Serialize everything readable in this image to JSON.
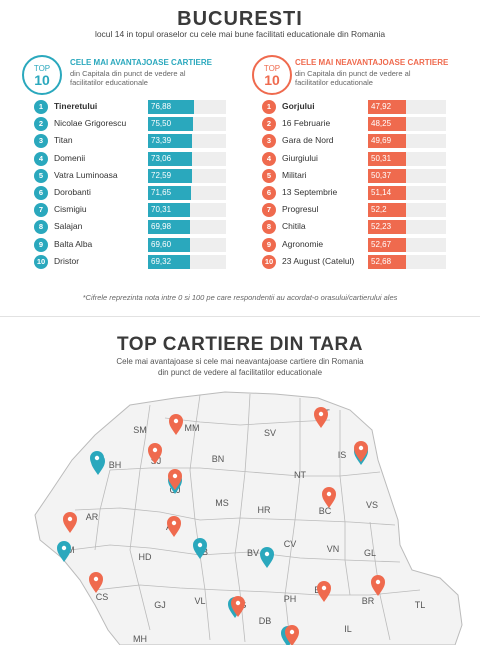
{
  "header": {
    "title": "BUCURESTI",
    "subtitle": "locul 14 in topul oraselor cu cele mai bune facilitati educationale din Romania"
  },
  "best": {
    "badge_top": "TOP",
    "badge_num": "10",
    "title": "CELE MAI AVANTAJOASE CARTIERE",
    "desc": "din Capitala din punct de vedere al facilitatilor educationale",
    "items": [
      {
        "rank": "1",
        "name": "Tineretului",
        "value": "76,88"
      },
      {
        "rank": "2",
        "name": "Nicolae Grigorescu",
        "value": "75,50"
      },
      {
        "rank": "3",
        "name": "Titan",
        "value": "73,39"
      },
      {
        "rank": "4",
        "name": "Domenii",
        "value": "73,06"
      },
      {
        "rank": "5",
        "name": "Vatra Luminoasa",
        "value": "72,59"
      },
      {
        "rank": "6",
        "name": "Dorobanti",
        "value": "71,65"
      },
      {
        "rank": "7",
        "name": "Cismigiu",
        "value": "70,31"
      },
      {
        "rank": "8",
        "name": "Salajan",
        "value": "69,98"
      },
      {
        "rank": "9",
        "name": "Balta Alba",
        "value": "69,60"
      },
      {
        "rank": "10",
        "name": "Dristor",
        "value": "69,32"
      }
    ]
  },
  "worst": {
    "badge_top": "TOP",
    "badge_num": "10",
    "title": "CELE MAI NEAVANTAJOASE CARTIERE",
    "desc": "din Capitala din punct de vedere al facilitatilor educationale",
    "items": [
      {
        "rank": "1",
        "name": "Gorjului",
        "value": "47,92"
      },
      {
        "rank": "2",
        "name": "16 Februarie",
        "value": "48,25"
      },
      {
        "rank": "3",
        "name": "Gara de Nord",
        "value": "49,69"
      },
      {
        "rank": "4",
        "name": "Giurgiului",
        "value": "50,31"
      },
      {
        "rank": "5",
        "name": "Militari",
        "value": "50,37"
      },
      {
        "rank": "6",
        "name": "13 Septembrie",
        "value": "51,14"
      },
      {
        "rank": "7",
        "name": "Progresul",
        "value": "52,2"
      },
      {
        "rank": "8",
        "name": "Chitila",
        "value": "52,23"
      },
      {
        "rank": "9",
        "name": "Agronomie",
        "value": "52,67"
      },
      {
        "rank": "10",
        "name": "23 August (Catelul)",
        "value": "52,68"
      }
    ]
  },
  "footnote": "*Cifrele reprezinta nota intre 0 si 100 pe care respondentii au acordat-o orasului/cartierului ales",
  "section2": {
    "title": "TOP CARTIERE DIN TARA",
    "subtitle_1": "Cele mai avantajoase si cele mai neavantajoase cartiere din Romania",
    "subtitle_2": "din punct de vedere al facilitatilor educationale"
  },
  "colors": {
    "teal": "#2aa8bd",
    "red": "#ef6a4e",
    "county_fill": "#f3f3f3",
    "county_border": "#bbbbbb"
  },
  "map": {
    "counties": [
      "SM",
      "MM",
      "SV",
      "BT",
      "BN",
      "IS",
      "BH",
      "SJ",
      "NT",
      "CJ",
      "MS",
      "AR",
      "BC",
      "VS",
      "HR",
      "AB",
      "TM",
      "CV",
      "VN",
      "HD",
      "SB",
      "BV",
      "GL",
      "CS",
      "GJ",
      "VL",
      "BZ",
      "BR",
      "TL",
      "PH",
      "AG",
      "DB",
      "IL",
      "MH"
    ],
    "pins": [
      {
        "county": "BT",
        "color": "red"
      },
      {
        "county": "MM",
        "color": "red"
      },
      {
        "county": "SJ",
        "color": "red"
      },
      {
        "county": "BH",
        "color": "teal"
      },
      {
        "county": "BH",
        "color": "teal"
      },
      {
        "county": "CJ",
        "color": "teal"
      },
      {
        "county": "CJ",
        "color": "red"
      },
      {
        "county": "IS",
        "color": "teal"
      },
      {
        "county": "IS",
        "color": "red"
      },
      {
        "county": "BC",
        "color": "red"
      },
      {
        "county": "AR",
        "color": "red"
      },
      {
        "county": "AB",
        "color": "red"
      },
      {
        "county": "TM",
        "color": "teal"
      },
      {
        "county": "SB",
        "color": "teal"
      },
      {
        "county": "BV",
        "color": "teal"
      },
      {
        "county": "CS",
        "color": "red"
      },
      {
        "county": "BZ",
        "color": "red"
      },
      {
        "county": "GL",
        "color": "red"
      },
      {
        "county": "AG",
        "color": "teal"
      },
      {
        "county": "DB",
        "color": "red"
      },
      {
        "county": "IF",
        "color": "teal"
      },
      {
        "county": "IF",
        "color": "red"
      }
    ]
  }
}
